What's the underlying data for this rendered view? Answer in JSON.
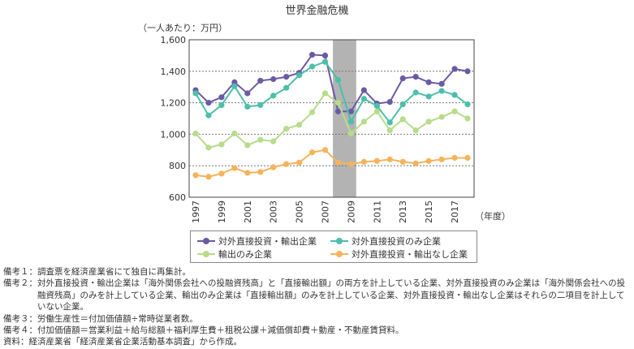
{
  "chart_data": {
    "type": "line",
    "title": "世界金融危機",
    "unit_label": "（一人あたり：万円）",
    "xlabel": "（年度）",
    "x": [
      1997,
      1998,
      1999,
      2000,
      2001,
      2002,
      2003,
      2004,
      2005,
      2006,
      2007,
      2008,
      2009,
      2010,
      2011,
      2012,
      2013,
      2014,
      2015,
      2016,
      2017,
      2018
    ],
    "x_tick_labels": [
      "1997",
      "1999",
      "2001",
      "2003",
      "2005",
      "2007",
      "2009",
      "2011",
      "2013",
      "2015",
      "2017"
    ],
    "y_ticks": [
      "600",
      "800",
      "1,000",
      "1,200",
      "1,400",
      "1,600"
    ],
    "ylim": [
      600,
      1600
    ],
    "shaded_region": [
      2007.6,
      2009.4
    ],
    "grid": "horizontal dotted",
    "legend_position": "bottom",
    "series": [
      {
        "name": "対外直接投資・輸出企業",
        "color": "#6a5aa6",
        "values": [
          1280,
          1200,
          1235,
          1330,
          1260,
          1340,
          1350,
          1365,
          1390,
          1505,
          1500,
          1145,
          1145,
          1280,
          1195,
          1205,
          1355,
          1365,
          1330,
          1320,
          1415,
          1400
        ]
      },
      {
        "name": "対外直接投資のみ企業",
        "color": "#4cbfaa",
        "values": [
          1260,
          1120,
          1185,
          1305,
          1175,
          1185,
          1245,
          1295,
          1375,
          1430,
          1460,
          1345,
          1080,
          1225,
          1180,
          1075,
          1190,
          1265,
          1240,
          1275,
          1250,
          1190
        ]
      },
      {
        "name": "輸出のみ企業",
        "color": "#b7dc8a",
        "values": [
          1005,
          915,
          935,
          1005,
          930,
          965,
          955,
          1035,
          1060,
          1140,
          1260,
          1200,
          1005,
          1080,
          1145,
          1025,
          1095,
          1025,
          1080,
          1110,
          1145,
          1100
        ]
      },
      {
        "name": "対外直接投資・輸出なし企業",
        "color": "#f5b35c",
        "values": [
          740,
          730,
          750,
          785,
          755,
          760,
          790,
          810,
          820,
          885,
          900,
          820,
          810,
          825,
          830,
          840,
          825,
          815,
          830,
          840,
          850,
          850
        ]
      }
    ]
  },
  "notes": [
    {
      "label": "備考１：",
      "text": "調査票を経済産業省にて独自に再集計。"
    },
    {
      "label": "備考２：",
      "text": "対外直接投資・輸出企業は「海外関係会社への投融資残高」と「直接輸出額」の両方を計上している企業、対外直接投資のみ企業は「海外関係会社への投融資残高」のみを計上している企業、輸出のみ企業は「直接輸出額」のみを計上している企業、対外直接投資・輸出なし企業はそれらの二項目を計上していない企業。"
    },
    {
      "label": "備考３：",
      "text": "労働生産性＝付加価値額÷常時従業者数。"
    },
    {
      "label": "備考４：",
      "text": "付加価値額＝営業利益＋給与総額＋福利厚生費＋租税公課＋減価償却費＋動産・不動産賃貸料。"
    },
    {
      "label": "資料：",
      "text": "経済産業省「経済産業省企業活動基本調査」から作成。"
    }
  ]
}
